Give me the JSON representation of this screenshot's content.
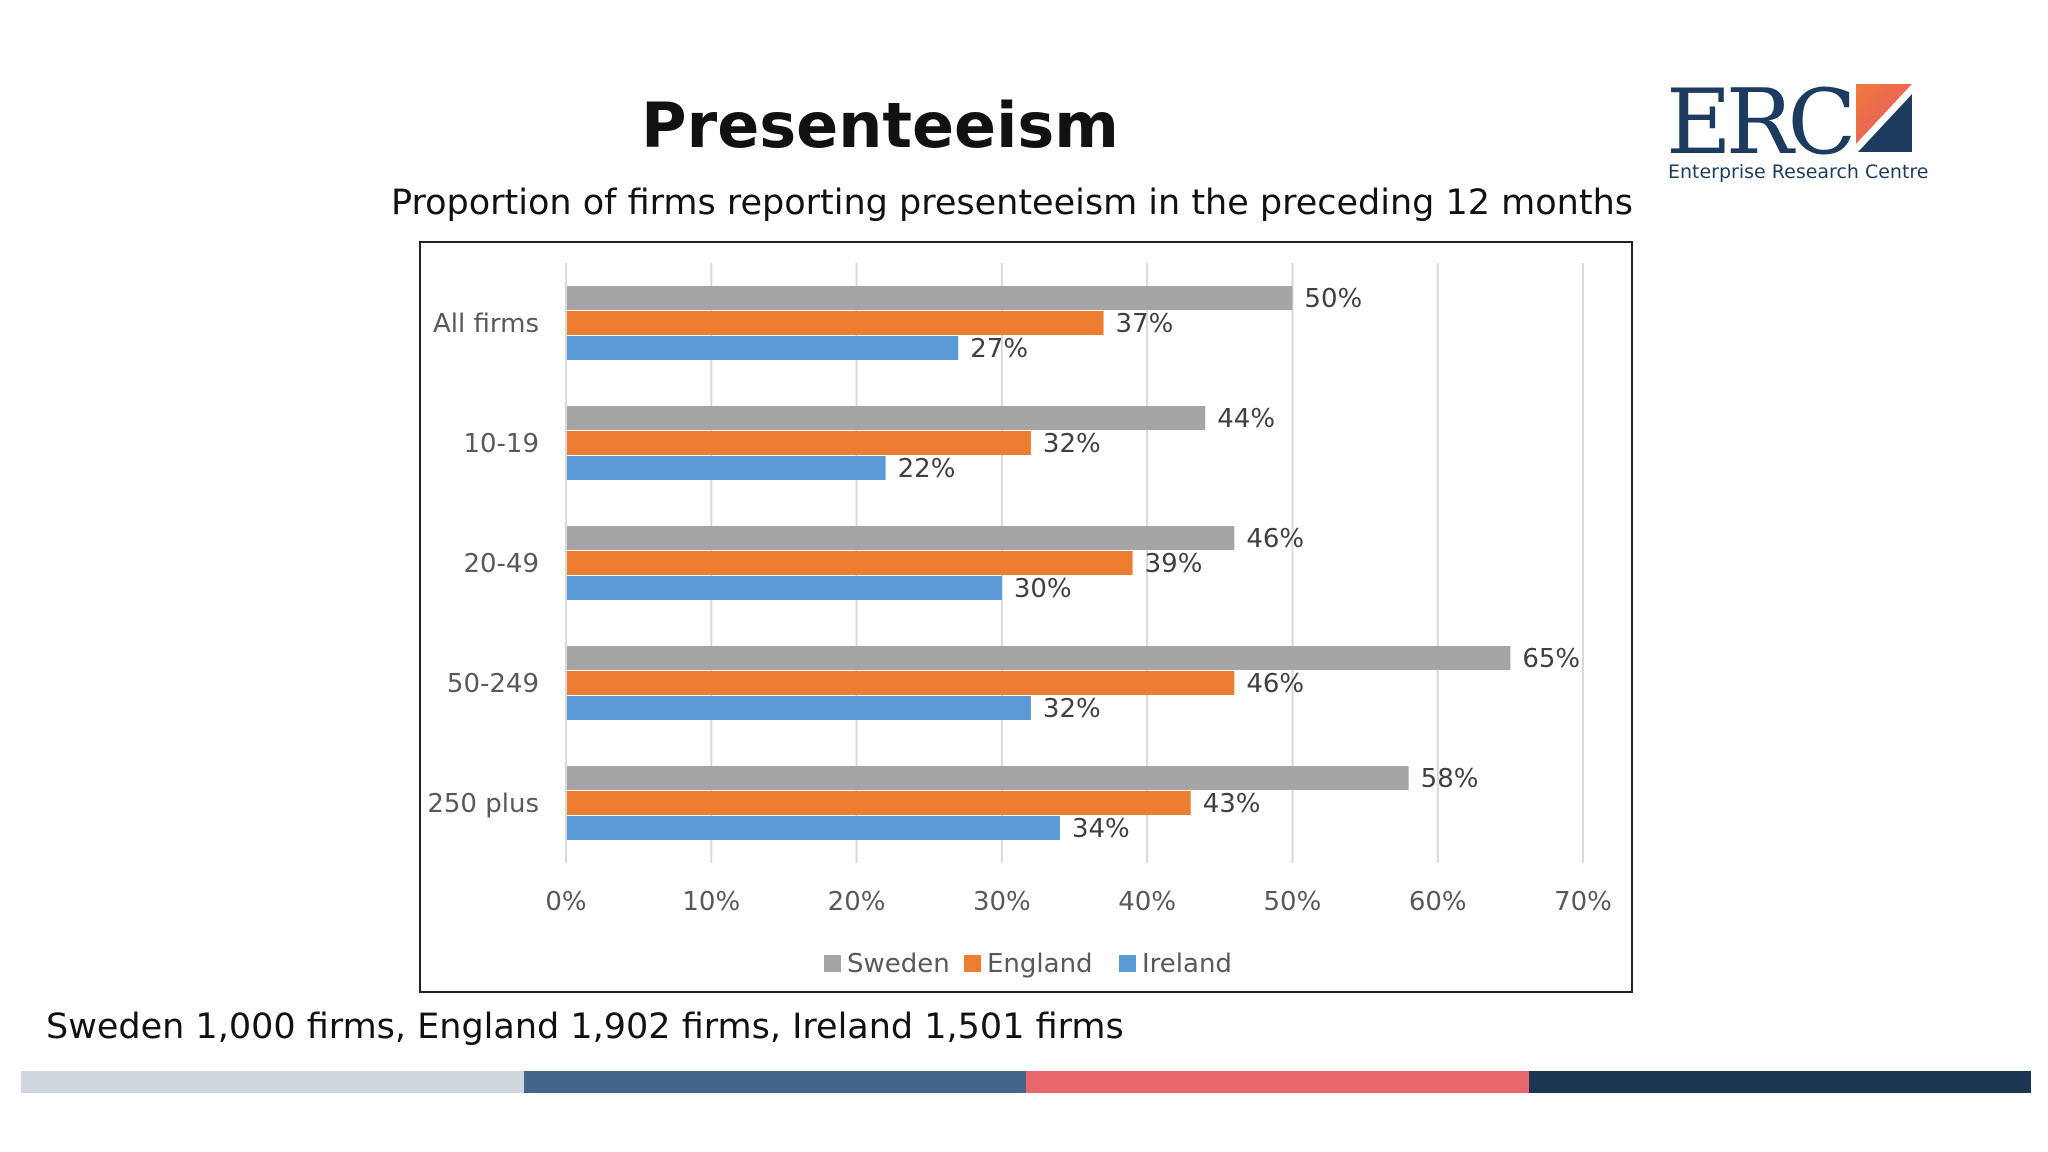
{
  "slide": {
    "title": "Presenteeism",
    "subtitle": "Proportion of firms reporting presenteeism in the preceding 12 months",
    "footnote": "Sweden 1,000 firms, England 1,902 firms, Ireland 1,501 firms"
  },
  "logo": {
    "wordmark": "ERC",
    "tagline": "Enterprise Research Centre",
    "colors": {
      "navy": "#1d3b5e",
      "orange": "#ef7a3c",
      "coral": "#e8556a"
    }
  },
  "bottom_band": {
    "colors": [
      "#d0d7de",
      "#44658a",
      "#e8676a",
      "#1a3650"
    ]
  },
  "chart_data": {
    "type": "bar",
    "orientation": "horizontal",
    "categories": [
      "All firms",
      "10-19",
      "20-49",
      "50-249",
      "250 plus"
    ],
    "series": [
      {
        "name": "Sweden",
        "color": "#a5a5a5",
        "values": [
          50,
          44,
          46,
          65,
          58
        ]
      },
      {
        "name": "England",
        "color": "#ed7d31",
        "values": [
          37,
          32,
          39,
          46,
          43
        ]
      },
      {
        "name": "Ireland",
        "color": "#5b9bd5",
        "values": [
          27,
          22,
          30,
          32,
          34
        ]
      }
    ],
    "value_format": "%",
    "xlim": [
      0,
      70
    ],
    "xticks": [
      "0%",
      "10%",
      "20%",
      "30%",
      "40%",
      "50%",
      "60%",
      "70%"
    ],
    "grid": "vertical",
    "legend": "bottom",
    "data_labels": true
  }
}
